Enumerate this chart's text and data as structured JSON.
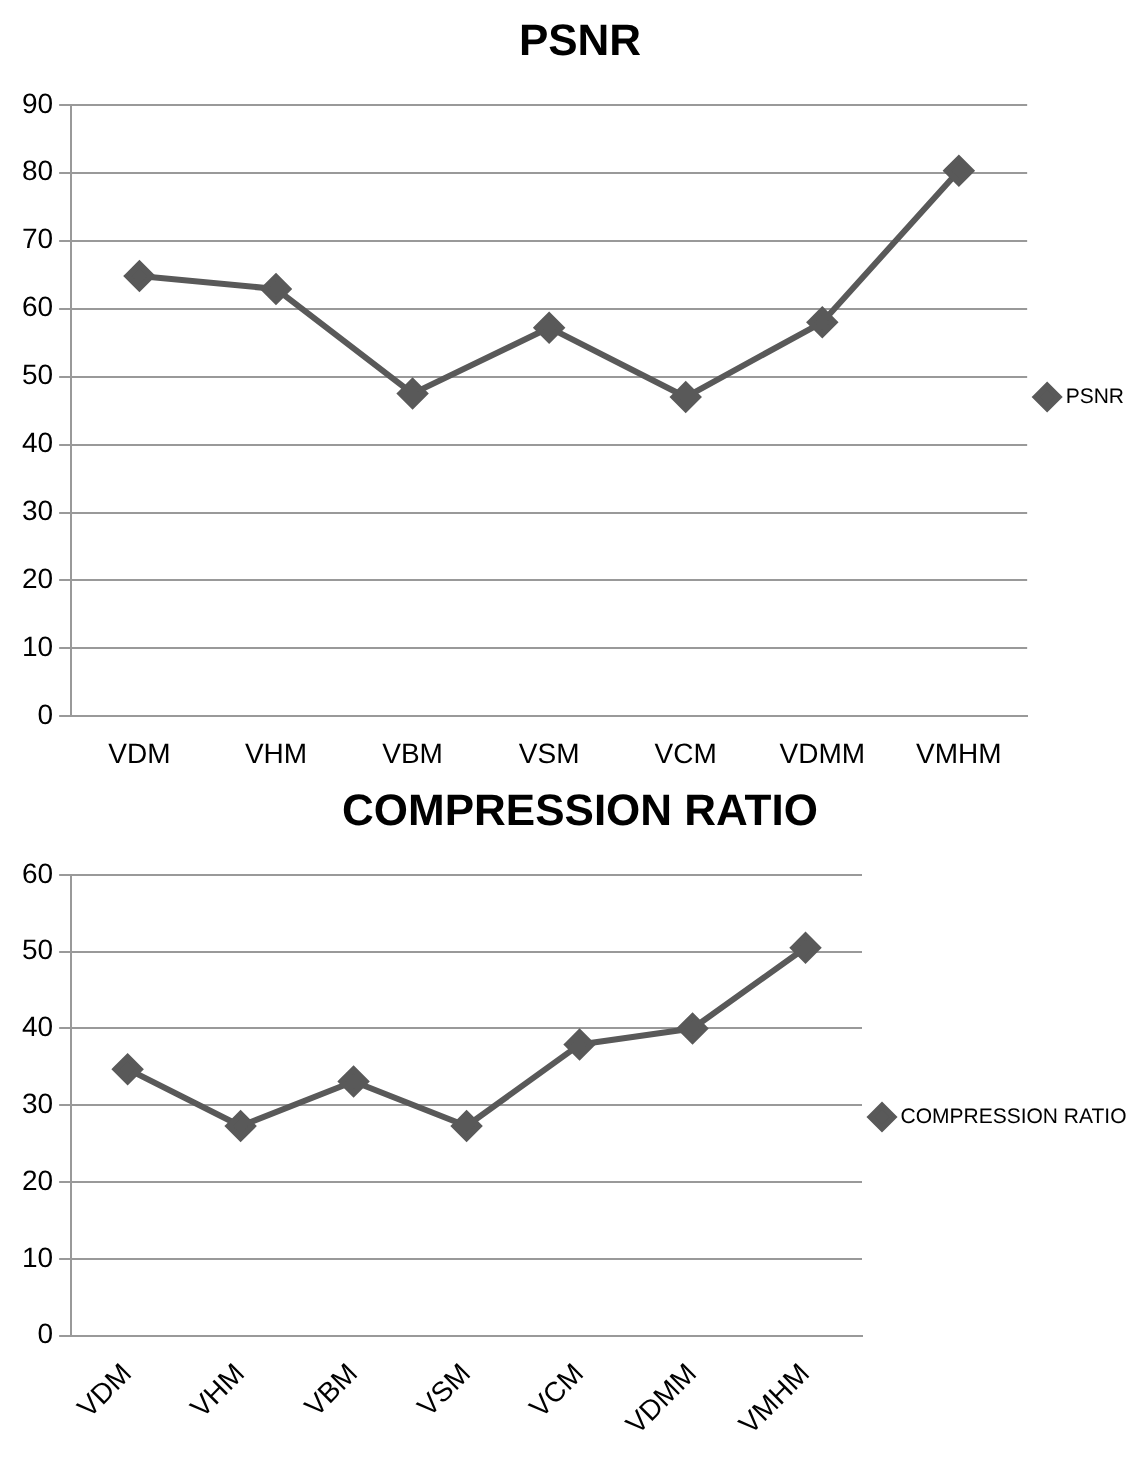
{
  "chart_data": [
    {
      "type": "line",
      "title": "PSNR",
      "categories": [
        "VDM",
        "VHM",
        "VBM",
        "VSM",
        "VCM",
        "VDMM",
        "VMHM"
      ],
      "series": [
        {
          "name": "PSNR",
          "color": "#595959",
          "values": [
            64.8,
            62.9,
            47.5,
            57.2,
            47,
            58,
            80.3
          ]
        }
      ],
      "ylim": [
        0,
        90
      ],
      "yticks": [
        0,
        10,
        20,
        30,
        40,
        50,
        60,
        70,
        80,
        90
      ],
      "grid": "y",
      "legend": "right",
      "marker": "diamond",
      "line_style": "solid"
    },
    {
      "type": "line",
      "title": "COMPRESSION RATIO",
      "categories": [
        "VDM",
        "VHM",
        "VBM",
        "VSM",
        "VCM",
        "VDMM",
        "VMHM"
      ],
      "series": [
        {
          "name": "COMPRESSION RATIO",
          "color": "#595959",
          "values": [
            34.7,
            27.3,
            33.1,
            27.3,
            37.9,
            40,
            50.5
          ]
        }
      ],
      "ylim": [
        0,
        60
      ],
      "yticks": [
        0,
        10,
        20,
        30,
        40,
        50,
        60
      ],
      "grid": "y",
      "legend": "right",
      "marker": "diamond",
      "line_style": "solid"
    }
  ]
}
